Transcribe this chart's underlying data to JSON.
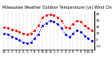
{
  "title": "Milwaukee Weather Outdoor Temperature (vs) Wind Chill (Last 24 Hours)",
  "outdoor_temp": [
    20,
    18,
    16,
    14,
    12,
    10,
    8,
    10,
    15,
    22,
    35,
    38,
    40,
    38,
    35,
    30,
    20,
    18,
    25,
    30,
    28,
    22,
    18,
    14
  ],
  "wind_chill": [
    10,
    8,
    5,
    2,
    -1,
    -4,
    -6,
    -4,
    2,
    8,
    22,
    26,
    30,
    28,
    24,
    18,
    8,
    4,
    10,
    15,
    12,
    6,
    2,
    -2
  ],
  "x_labels": [
    "12",
    "1",
    "2",
    "3",
    "4",
    "5",
    "6",
    "7",
    "8",
    "9",
    "10",
    "11",
    "12",
    "1",
    "2",
    "3",
    "4",
    "5",
    "6",
    "7",
    "8",
    "9",
    "10",
    "11"
  ],
  "ylim": [
    -15,
    45
  ],
  "ytick_values": [
    40,
    30,
    20,
    10,
    0,
    -10
  ],
  "ytick_labels": [
    "40",
    "30",
    "20",
    "10",
    "0",
    "-10"
  ],
  "temp_color": "#ff0000",
  "chill_color": "#0000ff",
  "bg_color": "#ffffff",
  "grid_color": "#888888",
  "title_fontsize": 3.5,
  "tick_fontsize": 3.0,
  "linewidth": 0.8,
  "markersize": 2.2,
  "marker": "."
}
